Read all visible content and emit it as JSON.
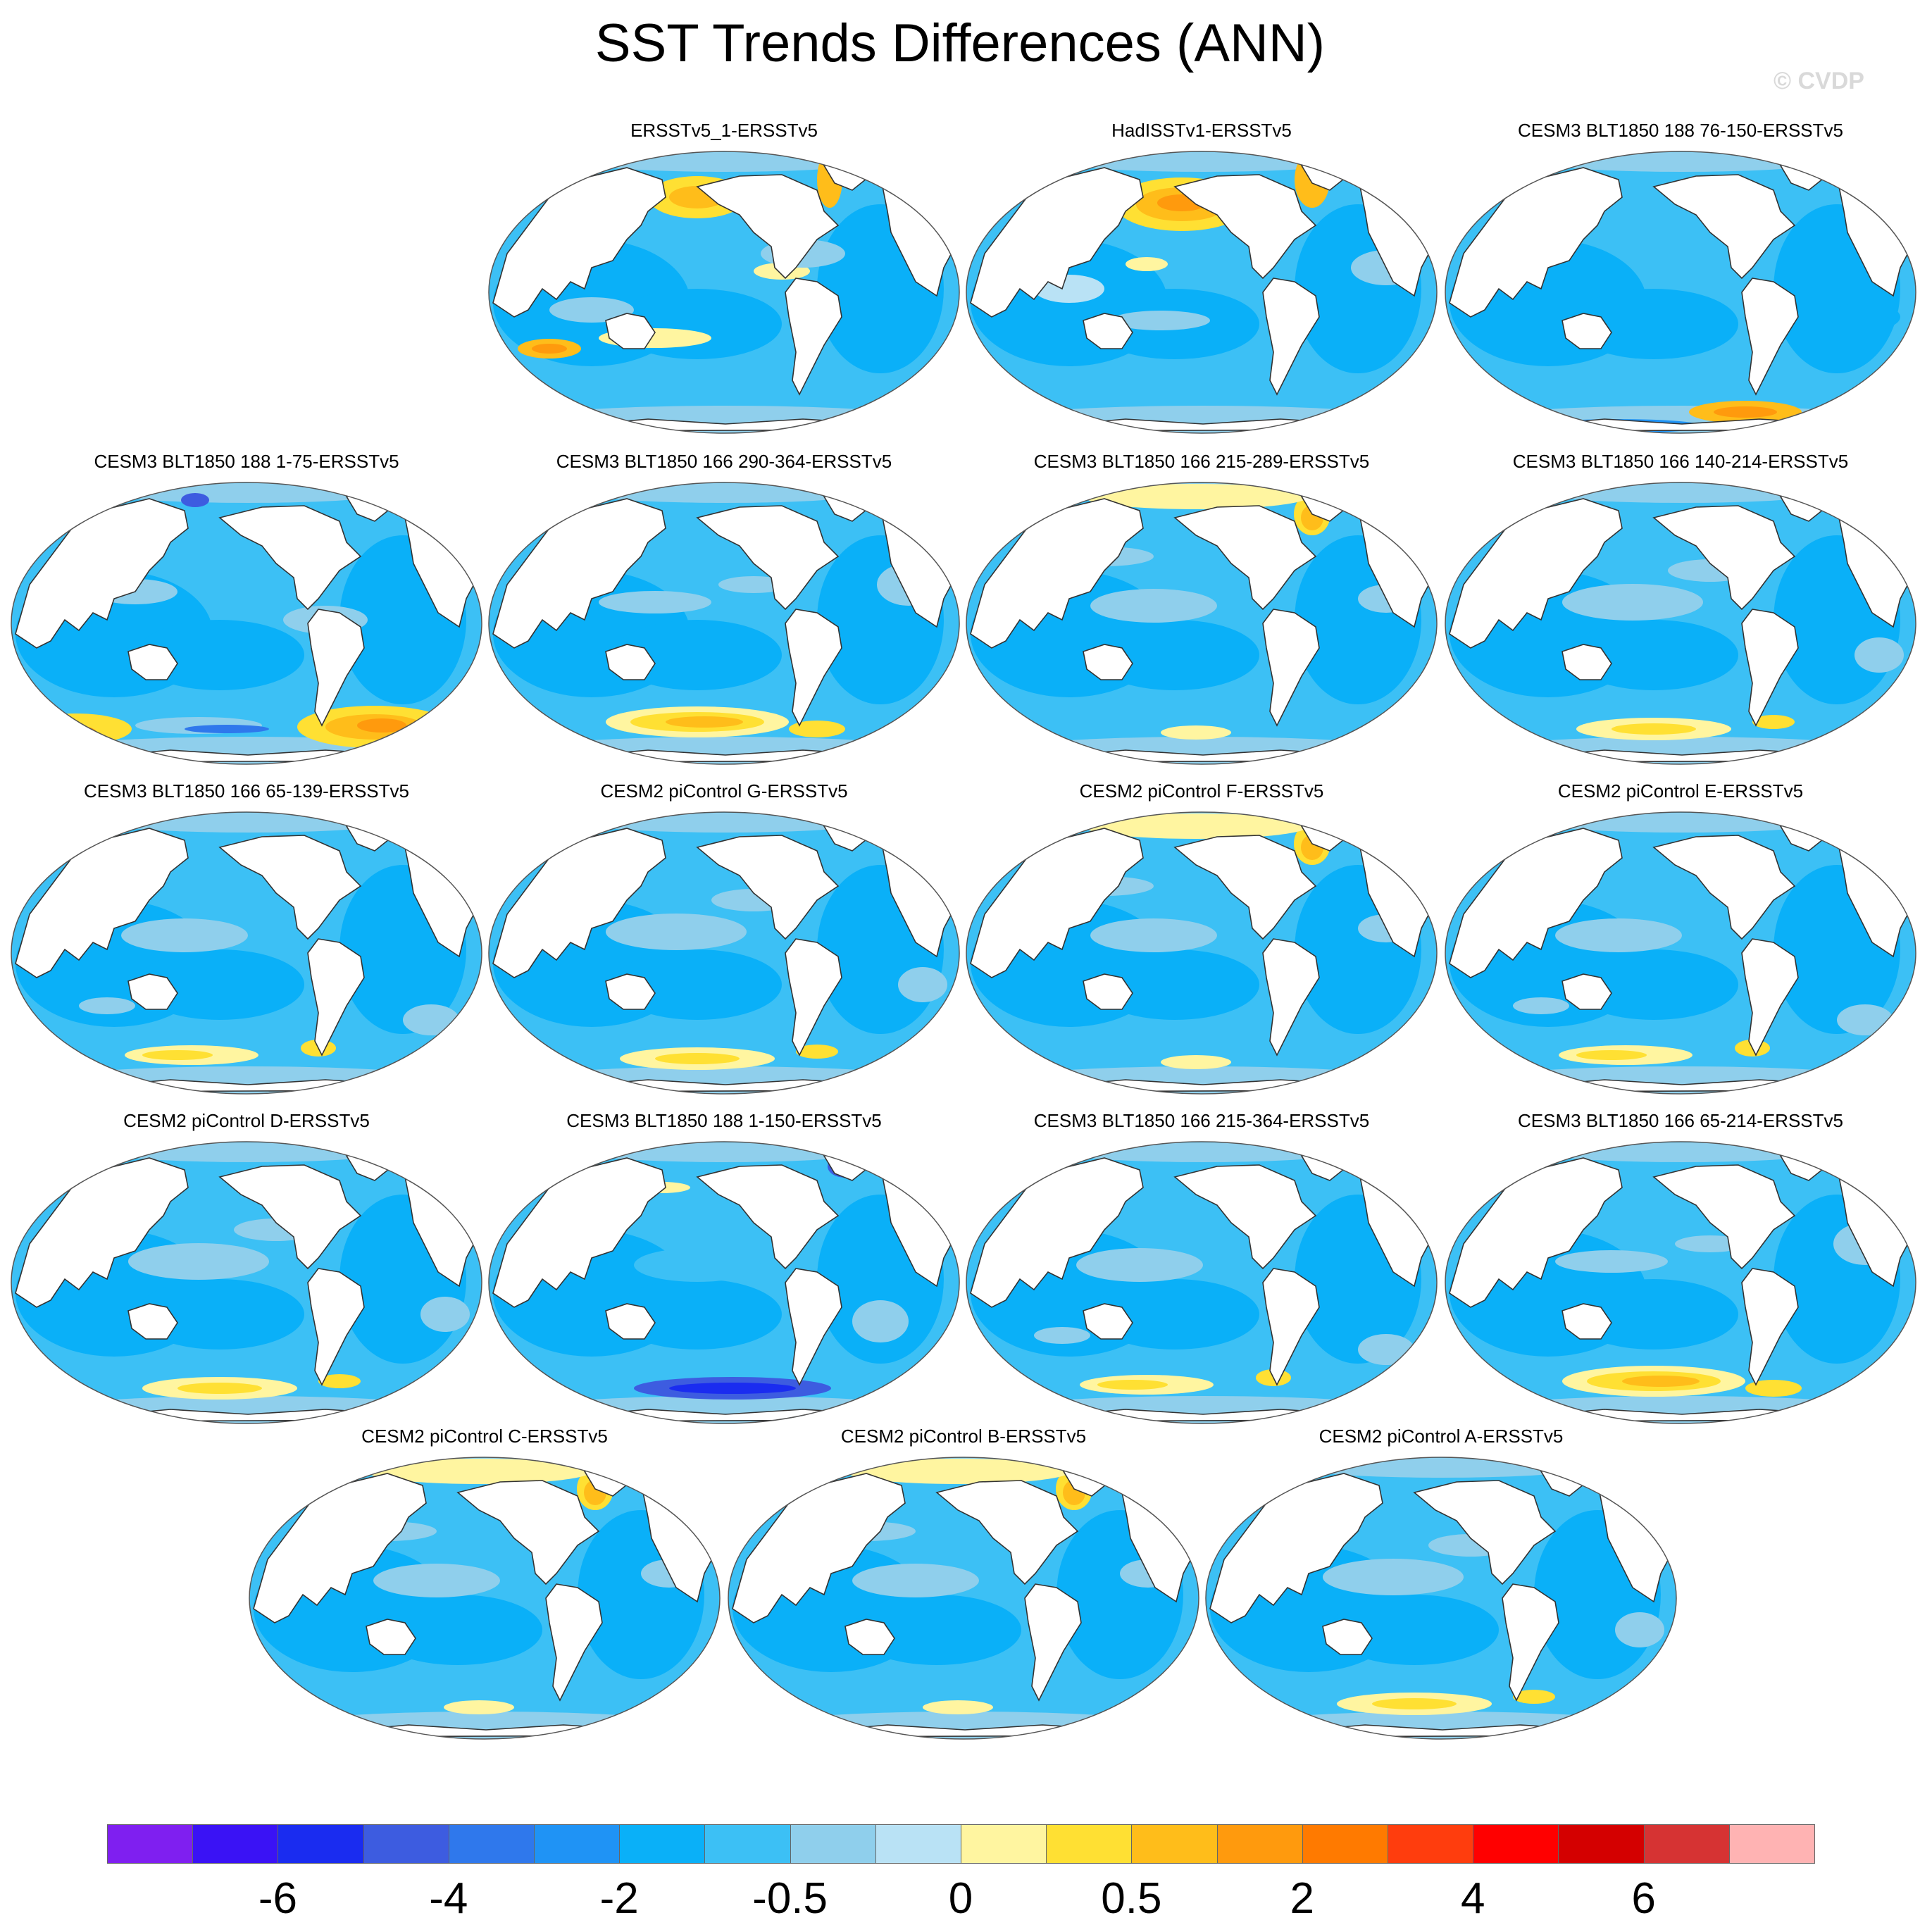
{
  "title": "SST Trends Differences (ANN)",
  "watermark": "© CVDP",
  "panels": [
    {
      "title": "ERSSTv5_1-ERSSTv5",
      "pattern": "obs1"
    },
    {
      "title": "HadISSTv1-ERSSTv5",
      "pattern": "obs2"
    },
    {
      "title": "CESM3 BLT1850 188 76-150-ERSSTv5",
      "pattern": "so_warm_small"
    },
    {
      "title": "CESM3 BLT1850 188 1-75-ERSSTv5",
      "pattern": "so_warm_big"
    },
    {
      "title": "CESM3 BLT1850 166 290-364-ERSSTv5",
      "pattern": "so_warm_mid"
    },
    {
      "title": "CESM3 BLT1850 166 215-289-ERSSTv5",
      "pattern": "natl_warm"
    },
    {
      "title": "CESM3 BLT1850 166 140-214-ERSSTv5",
      "pattern": "so_light"
    },
    {
      "title": "CESM3 BLT1850 166 65-139-ERSSTv5",
      "pattern": "so_light2"
    },
    {
      "title": "CESM2 piControl G-ERSSTv5",
      "pattern": "so_light"
    },
    {
      "title": "CESM2 piControl F-ERSSTv5",
      "pattern": "natl_warm"
    },
    {
      "title": "CESM2 piControl E-ERSSTv5",
      "pattern": "so_light2"
    },
    {
      "title": "CESM2 piControl D-ERSSTv5",
      "pattern": "so_light"
    },
    {
      "title": "CESM3 BLT1850 188 1-150-ERSSTv5",
      "pattern": "so_cold"
    },
    {
      "title": "CESM3 BLT1850 166 215-364-ERSSTv5",
      "pattern": "so_light2"
    },
    {
      "title": "CESM3 BLT1850 166 65-214-ERSSTv5",
      "pattern": "so_warm_mid"
    },
    {
      "title": "CESM2 piControl C-ERSSTv5",
      "pattern": "natl_warm"
    },
    {
      "title": "CESM2 piControl B-ERSSTv5",
      "pattern": "natl_warm"
    },
    {
      "title": "CESM2 piControl A-ERSSTv5",
      "pattern": "so_light"
    }
  ],
  "colorbar": {
    "colors": [
      "#7f1ff0",
      "#3a12f5",
      "#1a2cf0",
      "#3d5ce0",
      "#2f78ec",
      "#1f93f5",
      "#0ab0f8",
      "#3cc0f5",
      "#8fcfec",
      "#b9e2f5",
      "#fff5a0",
      "#ffe033",
      "#ffbd1a",
      "#ff9a0d",
      "#ff7a00",
      "#ff3d0d",
      "#ff0000",
      "#d40000",
      "#d63333",
      "#ffb3b3"
    ],
    "labels": [
      "-6",
      "-4",
      "-2",
      "-0.5",
      "0",
      "0.5",
      "2",
      "4",
      "6"
    ]
  },
  "colors": {
    "land": "#ffffff",
    "coast": "#333333",
    "ocean_base": "#3cc0f5"
  }
}
